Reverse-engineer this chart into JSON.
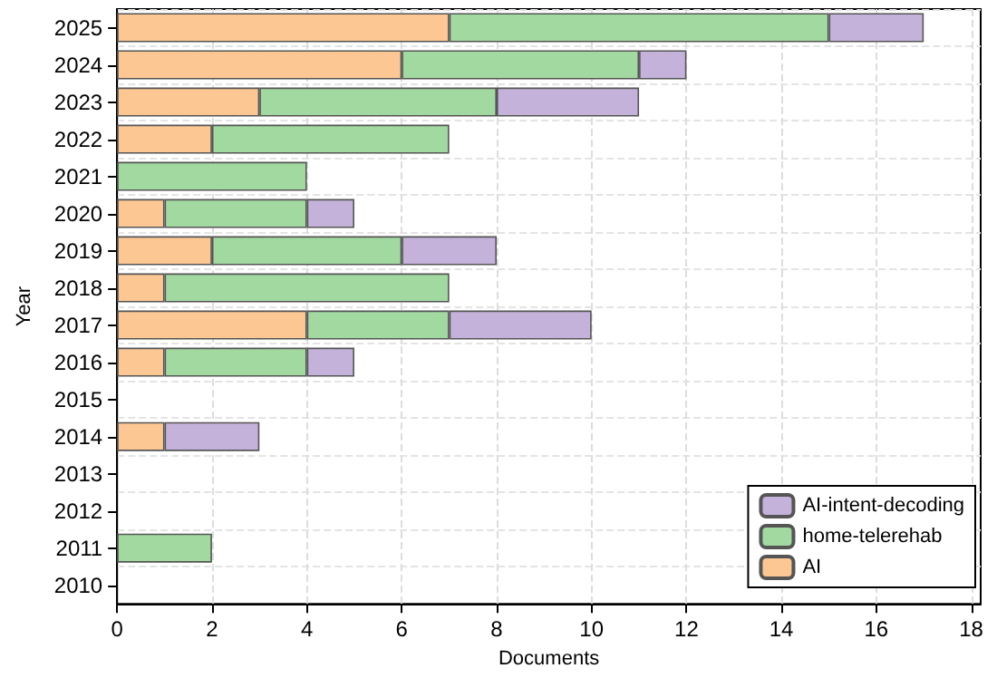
{
  "chart_data": {
    "type": "bar",
    "orientation": "horizontal",
    "stacked": true,
    "xlabel": "Documents",
    "ylabel": "Year",
    "categories": [
      "2025",
      "2024",
      "2023",
      "2022",
      "2021",
      "2020",
      "2019",
      "2018",
      "2017",
      "2016",
      "2015",
      "2014",
      "2013",
      "2012",
      "2011",
      "2010"
    ],
    "series": [
      {
        "name": "AI",
        "color": "#fdc794",
        "values": [
          7,
          6,
          3,
          2,
          0,
          1,
          2,
          1,
          4,
          1,
          0,
          1,
          0,
          0,
          0,
          0
        ]
      },
      {
        "name": "home-telerehab",
        "color": "#a2d9a0",
        "values": [
          8,
          5,
          5,
          5,
          4,
          3,
          4,
          6,
          3,
          3,
          0,
          0,
          0,
          0,
          2,
          0
        ]
      },
      {
        "name": "AI-intent-decoding",
        "color": "#c5b2da",
        "values": [
          2,
          1,
          3,
          0,
          0,
          1,
          2,
          0,
          3,
          1,
          0,
          2,
          0,
          0,
          0,
          0
        ]
      }
    ],
    "xlim": [
      0,
      18.2
    ],
    "xticks": [
      0,
      2,
      4,
      6,
      8,
      10,
      12,
      14,
      16,
      18
    ],
    "grid": true,
    "legend": "bottom right"
  }
}
